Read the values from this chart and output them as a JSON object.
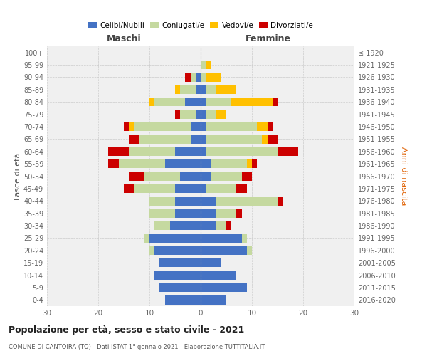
{
  "age_groups": [
    "0-4",
    "5-9",
    "10-14",
    "15-19",
    "20-24",
    "25-29",
    "30-34",
    "35-39",
    "40-44",
    "45-49",
    "50-54",
    "55-59",
    "60-64",
    "65-69",
    "70-74",
    "75-79",
    "80-84",
    "85-89",
    "90-94",
    "95-99",
    "100+"
  ],
  "birth_years": [
    "2016-2020",
    "2011-2015",
    "2006-2010",
    "2001-2005",
    "1996-2000",
    "1991-1995",
    "1986-1990",
    "1981-1985",
    "1976-1980",
    "1971-1975",
    "1966-1970",
    "1961-1965",
    "1956-1960",
    "1951-1955",
    "1946-1950",
    "1941-1945",
    "1936-1940",
    "1931-1935",
    "1926-1930",
    "1921-1925",
    "≤ 1920"
  ],
  "maschi": {
    "celibi": [
      7,
      8,
      9,
      8,
      9,
      10,
      6,
      5,
      5,
      5,
      4,
      7,
      5,
      2,
      2,
      1,
      3,
      1,
      1,
      0,
      0
    ],
    "coniugati": [
      0,
      0,
      0,
      0,
      1,
      1,
      3,
      5,
      5,
      8,
      7,
      9,
      9,
      10,
      11,
      3,
      6,
      3,
      1,
      0,
      0
    ],
    "vedovi": [
      0,
      0,
      0,
      0,
      0,
      0,
      0,
      0,
      0,
      0,
      0,
      0,
      0,
      0,
      1,
      0,
      1,
      1,
      0,
      0,
      0
    ],
    "divorziati": [
      0,
      0,
      0,
      0,
      0,
      0,
      0,
      0,
      0,
      2,
      3,
      2,
      4,
      2,
      1,
      1,
      0,
      0,
      1,
      0,
      0
    ]
  },
  "femmine": {
    "nubili": [
      5,
      9,
      7,
      4,
      9,
      8,
      3,
      3,
      3,
      1,
      2,
      2,
      1,
      1,
      1,
      1,
      1,
      1,
      0,
      0,
      0
    ],
    "coniugate": [
      0,
      0,
      0,
      0,
      1,
      1,
      2,
      4,
      12,
      6,
      6,
      7,
      14,
      11,
      10,
      2,
      5,
      2,
      1,
      1,
      0
    ],
    "vedove": [
      0,
      0,
      0,
      0,
      0,
      0,
      0,
      0,
      0,
      0,
      0,
      1,
      0,
      1,
      2,
      2,
      8,
      4,
      3,
      1,
      0
    ],
    "divorziate": [
      0,
      0,
      0,
      0,
      0,
      0,
      1,
      1,
      1,
      2,
      2,
      1,
      4,
      2,
      1,
      0,
      1,
      0,
      0,
      0,
      0
    ]
  },
  "colors": {
    "celibi": "#4472c4",
    "coniugati": "#c5d9a0",
    "vedovi": "#ffc000",
    "divorziati": "#cc0000"
  },
  "xlim": 30,
  "title": "Popolazione per età, sesso e stato civile - 2021",
  "subtitle": "COMUNE DI CANTOIRA (TO) - Dati ISTAT 1° gennaio 2021 - Elaborazione TUTTITALIA.IT",
  "ylabel_left": "Fasce di età",
  "ylabel_right": "Anni di nascita",
  "xlabel_left": "Maschi",
  "xlabel_right": "Femmine",
  "legend_labels": [
    "Celibi/Nubili",
    "Coniugati/e",
    "Vedovi/e",
    "Divorziati/e"
  ],
  "bg_color": "#ffffff",
  "grid_color": "#cccccc"
}
